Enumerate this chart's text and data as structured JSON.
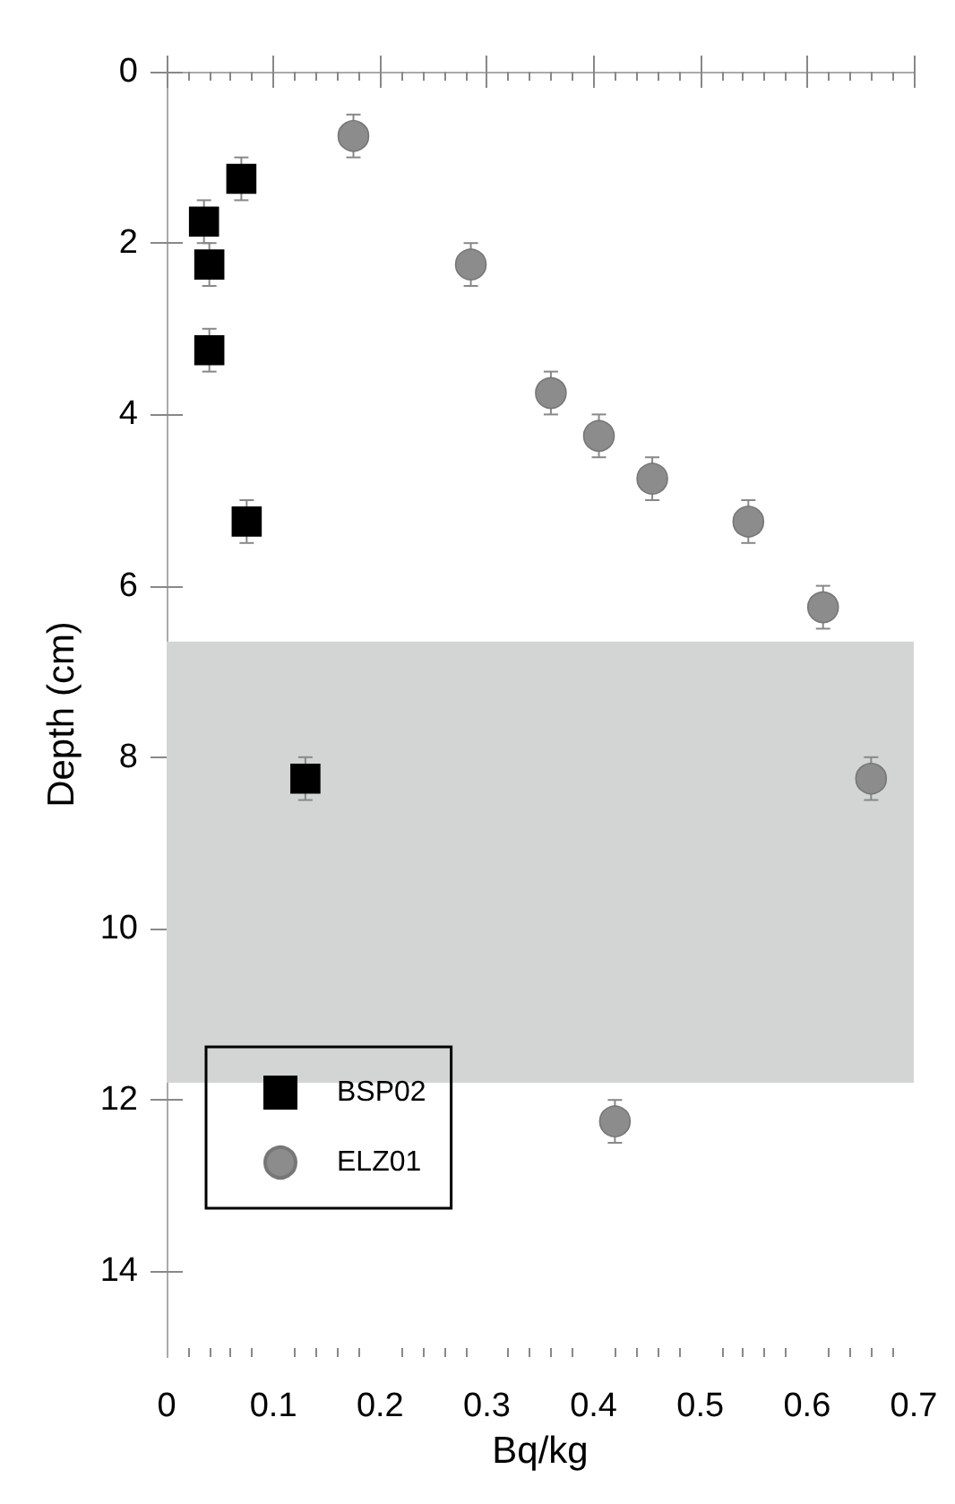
{
  "chart_data": {
    "type": "scatter",
    "xlabel": "Bq/kg",
    "ylabel": "Depth (cm)",
    "xlim": [
      0,
      0.7
    ],
    "xticks": [
      0,
      0.1,
      0.2,
      0.3,
      0.4,
      0.5,
      0.6,
      0.7
    ],
    "ylim": [
      15,
      0
    ],
    "yticks": [
      0,
      2,
      4,
      6,
      8,
      10,
      12,
      14
    ],
    "grid": false,
    "legend": "bottom left",
    "bands": [
      {
        "axis": "y",
        "from": 6.65,
        "to": 11.8,
        "color": "#d3d5d5"
      }
    ],
    "series": [
      {
        "name": "BSP02",
        "color": "#000000",
        "marker": "square",
        "x": [
          0.07,
          0.035,
          0.04,
          0.04,
          0.075,
          0.13
        ],
        "values": [
          1.25,
          1.75,
          2.25,
          3.25,
          5.25,
          8.25
        ],
        "errors": [
          0.25,
          0.25,
          0.25,
          0.25,
          0.25,
          0.25
        ]
      },
      {
        "name": "ELZ01",
        "color": "#8c8c8c",
        "marker": "circle",
        "x": [
          0.175,
          0.285,
          0.36,
          0.405,
          0.455,
          0.545,
          0.615,
          0.66,
          0.42
        ],
        "values": [
          0.75,
          2.25,
          3.75,
          4.25,
          4.75,
          5.25,
          6.25,
          8.25,
          12.25
        ],
        "errors": [
          0.25,
          0.25,
          0.25,
          0.25,
          0.25,
          0.25,
          0.25,
          0.25,
          0.25
        ]
      }
    ]
  }
}
